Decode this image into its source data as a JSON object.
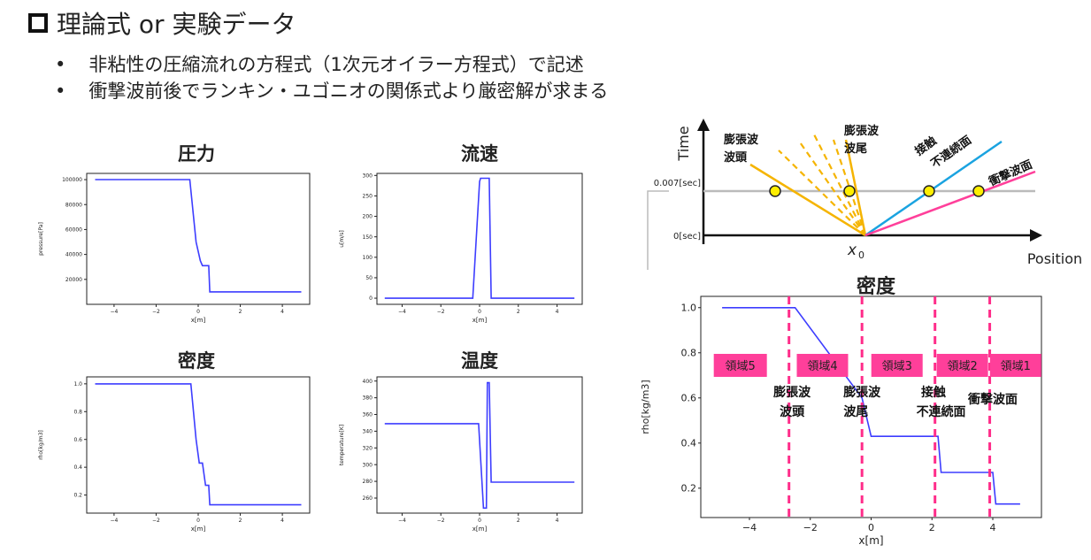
{
  "title": "理論式 or 実験データ",
  "bullets": [
    "非粘性の圧縮流れの方程式（1次元オイラー方程式）で記述",
    "衝撃波前後でランキン・ユゴニオの関係式より厳密解が求まる"
  ],
  "bullet_mark": "•",
  "chart_data": [
    {
      "type": "line",
      "title": "圧力",
      "xlabel": "x[m]",
      "ylabel": "pressure[Pa]",
      "xlim": [
        -5.3,
        5.3
      ],
      "ylim": [
        0,
        105000
      ],
      "xticks": [
        -4,
        -2,
        0,
        2,
        4
      ],
      "yticks": [
        20000,
        40000,
        60000,
        80000,
        100000
      ],
      "x": [
        -4.9,
        -0.4,
        -0.1,
        0.1,
        0.2,
        0.5,
        0.55,
        4.9
      ],
      "y": [
        100000,
        100000,
        50000,
        35000,
        31000,
        31000,
        10000,
        10000
      ]
    },
    {
      "type": "line",
      "title": "流速",
      "xlabel": "x[m]",
      "ylabel": "u[m/s]",
      "xlim": [
        -5.3,
        5.3
      ],
      "ylim": [
        -15,
        305
      ],
      "xticks": [
        -4,
        -2,
        0,
        2,
        4
      ],
      "yticks": [
        0,
        50,
        100,
        150,
        200,
        250,
        300
      ],
      "x": [
        -4.9,
        -0.35,
        0.0,
        0.05,
        0.45,
        0.5,
        0.6,
        4.9
      ],
      "y": [
        0,
        0,
        285,
        293,
        293,
        293,
        0,
        0
      ]
    },
    {
      "type": "line",
      "title": "密度",
      "xlabel": "x[m]",
      "ylabel": "rho[kg/m3]",
      "xlim": [
        -5.3,
        5.3
      ],
      "ylim": [
        0.07,
        1.05
      ],
      "xticks": [
        -4,
        -2,
        0,
        2,
        4
      ],
      "yticks": [
        0.2,
        0.4,
        0.6,
        0.8,
        1.0
      ],
      "x": [
        -4.9,
        -0.35,
        -0.1,
        0.05,
        0.15,
        0.2,
        0.35,
        0.4,
        0.5,
        0.55,
        4.9
      ],
      "y": [
        1.0,
        1.0,
        0.6,
        0.43,
        0.43,
        0.43,
        0.27,
        0.27,
        0.27,
        0.13,
        0.13
      ]
    },
    {
      "type": "line",
      "title": "温度",
      "xlabel": "x[m]",
      "ylabel": "temperature[K]",
      "xlim": [
        -5.3,
        5.3
      ],
      "ylim": [
        242,
        405
      ],
      "xticks": [
        -4,
        -2,
        0,
        2,
        4
      ],
      "yticks": [
        260,
        280,
        300,
        320,
        340,
        360,
        380,
        400
      ],
      "x": [
        -4.9,
        -0.05,
        0.2,
        0.35,
        0.4,
        0.5,
        0.6,
        4.9
      ],
      "y": [
        349,
        349,
        248,
        248,
        398,
        398,
        279,
        279
      ]
    },
    {
      "type": "line",
      "title": "密度",
      "xlabel": "x[m]",
      "ylabel": "rho[kg/m3]",
      "xlim": [
        -5.6,
        5.6
      ],
      "ylim": [
        0.07,
        1.05
      ],
      "xticks": [
        -4,
        -2,
        0,
        2,
        4
      ],
      "yticks": [
        0.2,
        0.4,
        0.6,
        0.8,
        1.0
      ],
      "x": [
        -4.9,
        -2.5,
        -0.3,
        0.0,
        2.2,
        2.3,
        4.0,
        4.1,
        4.9
      ],
      "y": [
        1.0,
        1.0,
        0.6,
        0.43,
        0.43,
        0.27,
        0.27,
        0.13,
        0.13
      ],
      "dashed_lines_x": [
        -2.7,
        -0.3,
        2.1,
        3.9
      ],
      "regions": [
        "領域5",
        "領域4",
        "領域3",
        "領域2",
        "領域1"
      ],
      "annotations": [
        "膨張波",
        "波頭",
        "膨張波",
        "波尾",
        "接触",
        "不連続面",
        "衝撃波面"
      ]
    }
  ],
  "xt_diagram": {
    "ylabel": "Time",
    "xlabel": "Position",
    "origin_label": "x",
    "origin_sub": "0",
    "t1_label": "0.007[sec]",
    "t0_label": "0[sec]",
    "labels": {
      "head": [
        "膨張波",
        "波頭"
      ],
      "tail": [
        "膨張波",
        "波尾"
      ],
      "contact": [
        "接触",
        "不連続面"
      ],
      "shock": "衝撃波面"
    },
    "colors": {
      "expansion": "#f5b400",
      "contact": "#1aa3e0",
      "shock": "#ff3f9a",
      "point": "#ffee00"
    }
  },
  "colors": {
    "line": "#3d3dff",
    "region": "#ff3f9a",
    "dash": "#ff2d8a"
  }
}
